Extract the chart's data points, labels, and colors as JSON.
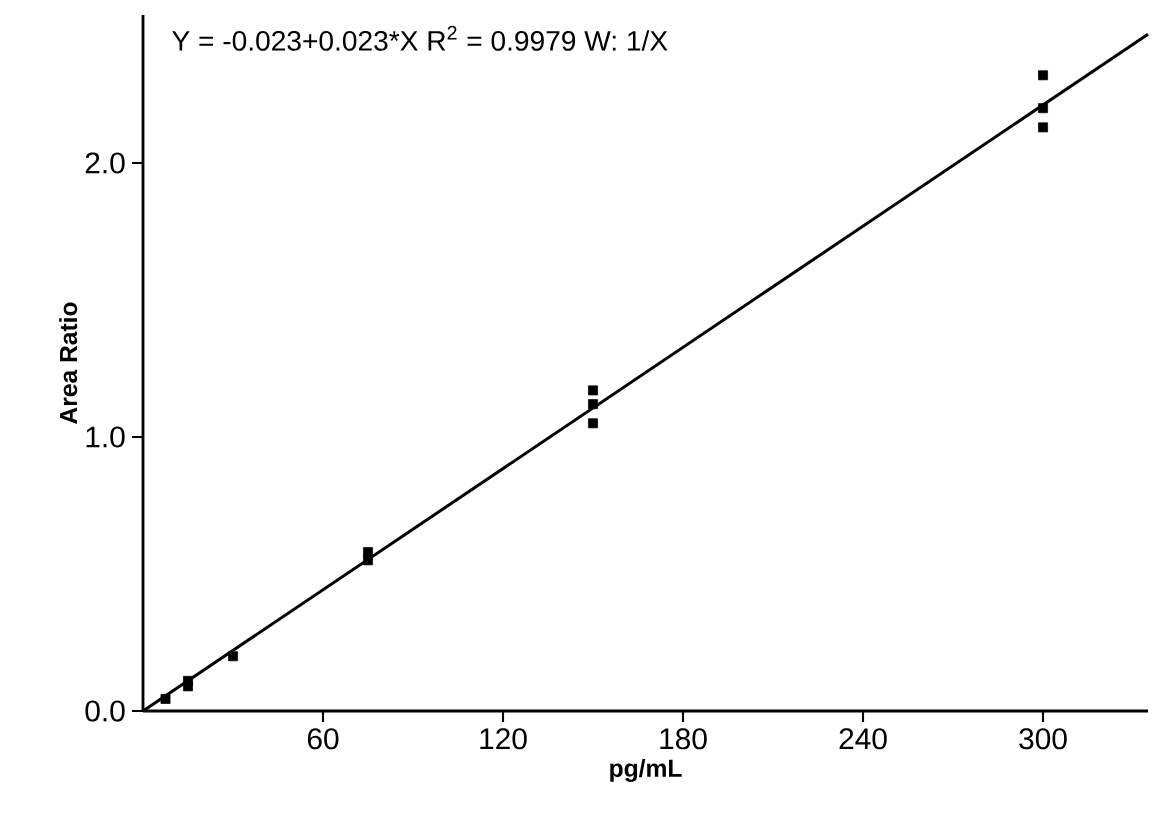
{
  "chart_data": {
    "type": "scatter",
    "xlabel": "pg/mL",
    "ylabel": "Area Ratio",
    "annotations": [
      "Y = -0.023+0.023*X   R$^{2}$ = 0.9979   W: 1/X"
    ],
    "xlim": [
      0,
      335
    ],
    "ylim": [
      0,
      2.54
    ],
    "xticks": [
      60,
      120,
      180,
      240,
      300
    ],
    "yticks": [
      {
        "value": 0,
        "label": "0.0"
      },
      {
        "value": 1,
        "label": "1.0"
      },
      {
        "value": 2,
        "label": "2.0"
      }
    ],
    "marker": "square",
    "series": [
      {
        "color": "#000000",
        "x": [
          7.5,
          15,
          15,
          30,
          75,
          75,
          150,
          150,
          150,
          300,
          300,
          300
        ],
        "values": [
          0.044,
          0.09,
          0.11,
          0.2,
          0.55,
          0.58,
          1.05,
          1.12,
          1.17,
          2.13,
          2.2,
          2.32
        ]
      },
      {
        "type": "line",
        "color": "#000000",
        "line_style": "solid",
        "marker": "none",
        "x": [
          0,
          335
        ],
        "values": [
          0,
          2.47
        ]
      }
    ]
  }
}
